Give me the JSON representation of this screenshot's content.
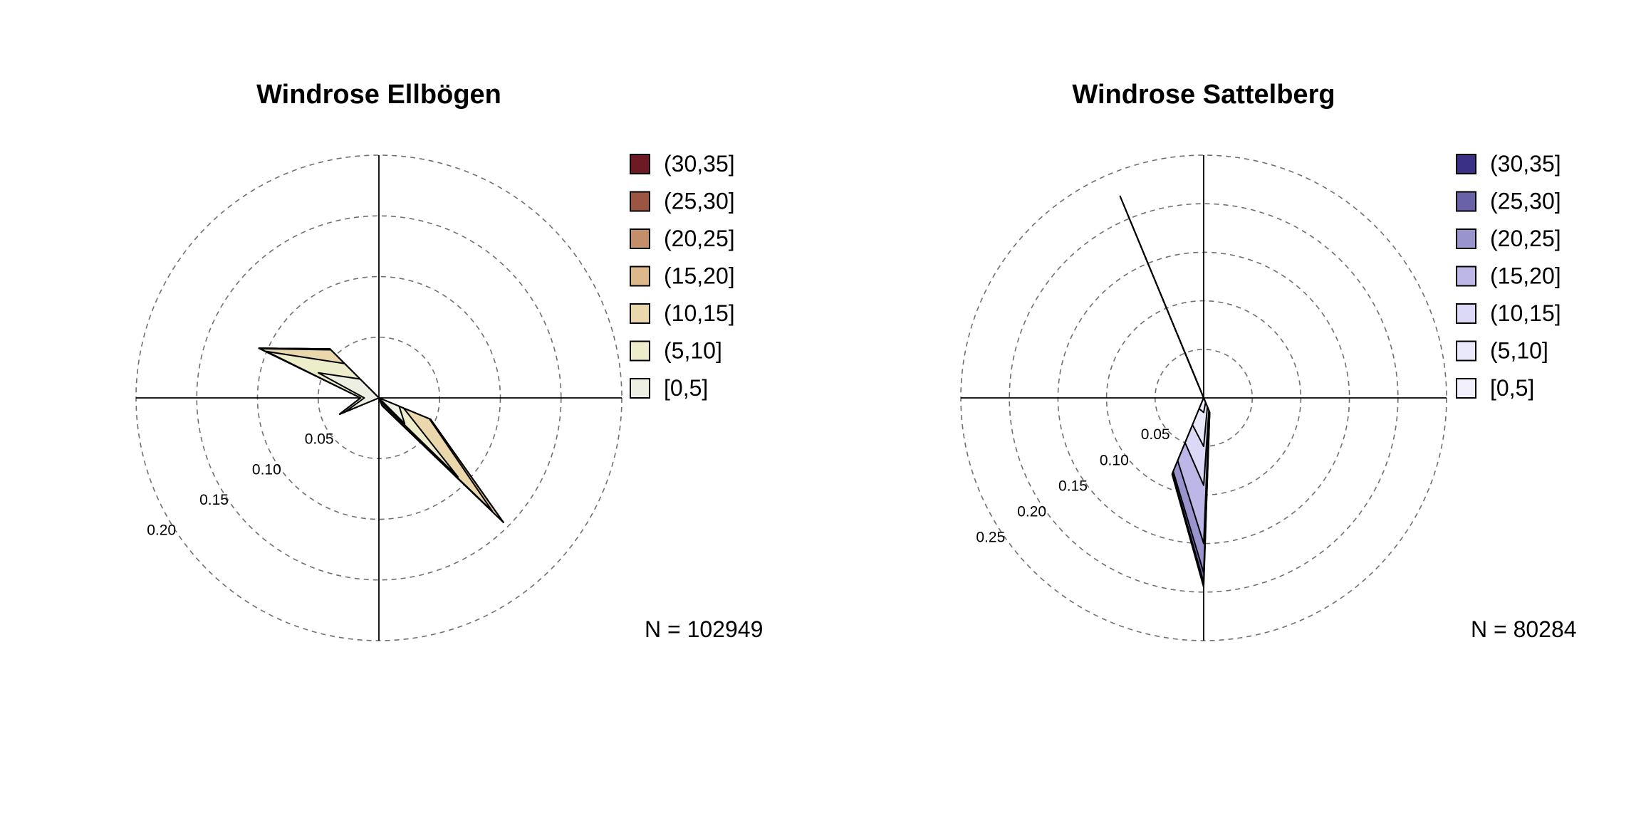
{
  "chart_data": [
    {
      "type": "windrose",
      "title": "Windrose Ellbögen",
      "n_label": "N = 102949",
      "ring_values": [
        0.05,
        0.1,
        0.15,
        0.2
      ],
      "ring_labels": [
        "0.05",
        "0.10",
        "0.15",
        "0.20"
      ],
      "legend": [
        "(30,35]",
        "(25,30]",
        "(20,25]",
        "(15,20]",
        "(10,15]",
        "(5,10]",
        "[0,5]"
      ],
      "legend_colors": [
        "#6e1a24",
        "#9c5443",
        "#c48e6b",
        "#dcb88b",
        "#ead8ac",
        "#eeedcb",
        "#ecefe2"
      ],
      "direction_bins_deg": [
        0,
        22.5,
        45,
        67.5,
        90,
        112.5,
        135,
        157.5,
        180,
        202.5,
        225,
        247.5,
        270,
        292.5,
        315,
        337.5
      ],
      "series": [
        {
          "name": "[0,5]",
          "values": [
            0.0,
            0.0,
            0.0,
            0.0,
            0.0,
            0.018,
            0.03,
            0.0,
            0.0,
            0.0,
            0.0,
            0.03,
            0.012,
            0.054,
            0.022,
            0.0
          ]
        },
        {
          "name": "(5,10]",
          "values": [
            0.0,
            0.0,
            0.0,
            0.0,
            0.0,
            0.022,
            0.092,
            0.003,
            0.0,
            0.0,
            0.0,
            0.035,
            0.015,
            0.1,
            0.04,
            0.0
          ]
        },
        {
          "name": "(10,15]",
          "values": [
            0.0,
            0.0,
            0.0,
            0.0,
            0.0,
            0.045,
            0.132,
            0.006,
            0.0,
            0.0,
            0.0,
            0.035,
            0.015,
            0.106,
            0.056,
            0.0
          ]
        },
        {
          "name": "(15,20]",
          "values": [
            0.0,
            0.0,
            0.0,
            0.0,
            0.0,
            0.046,
            0.145,
            0.007,
            0.0,
            0.0,
            0.0,
            0.035,
            0.015,
            0.107,
            0.057,
            0.0
          ]
        },
        {
          "name": "(20,25]",
          "values": [
            0.0,
            0.0,
            0.0,
            0.0,
            0.0,
            0.046,
            0.145,
            0.007,
            0.0,
            0.0,
            0.0,
            0.035,
            0.015,
            0.107,
            0.057,
            0.0
          ]
        },
        {
          "name": "(25,30]",
          "values": [
            0.0,
            0.0,
            0.0,
            0.0,
            0.0,
            0.046,
            0.145,
            0.007,
            0.0,
            0.0,
            0.0,
            0.035,
            0.015,
            0.107,
            0.057,
            0.0
          ]
        },
        {
          "name": "(30,35]",
          "values": [
            0.0,
            0.0,
            0.0,
            0.0,
            0.0,
            0.046,
            0.145,
            0.007,
            0.0,
            0.0,
            0.0,
            0.035,
            0.015,
            0.107,
            0.057,
            0.0
          ]
        }
      ],
      "rmax": 0.2
    },
    {
      "type": "windrose",
      "title": "Windrose Sattelberg",
      "n_label": "N = 80284",
      "ring_values": [
        0.05,
        0.1,
        0.15,
        0.2,
        0.25
      ],
      "ring_labels": [
        "0.05",
        "0.10",
        "0.15",
        "0.20",
        "0.25"
      ],
      "legend": [
        "(30,35]",
        "(25,30]",
        "(20,25]",
        "(15,20]",
        "(10,15]",
        "(5,10]",
        "[0,5]"
      ],
      "legend_colors": [
        "#3a3185",
        "#6a62a8",
        "#9a94ce",
        "#bdb7e8",
        "#dcd9f7",
        "#eae8fb",
        "#f1f0fc"
      ],
      "direction_bins_deg": [
        0,
        22.5,
        45,
        67.5,
        90,
        112.5,
        135,
        157.5,
        180,
        202.5,
        225,
        247.5,
        270,
        292.5,
        315,
        337.5
      ],
      "series": [
        {
          "name": "[0,5]",
          "values": [
            0.0,
            0.0,
            0.0,
            0.0,
            0.0,
            0.0,
            0.0,
            0.005,
            0.015,
            0.012,
            0.0,
            0.0,
            0.0,
            0.0,
            0.0,
            0.005
          ]
        },
        {
          "name": "(5,10]",
          "values": [
            0.0,
            0.0,
            0.0,
            0.0,
            0.0,
            0.0,
            0.0,
            0.01,
            0.05,
            0.03,
            0.0,
            0.0,
            0.0,
            0.0,
            0.0,
            0.06
          ]
        },
        {
          "name": "(10,15]",
          "values": [
            0.0,
            0.0,
            0.0,
            0.0,
            0.0,
            0.0,
            0.0,
            0.014,
            0.09,
            0.05,
            0.0,
            0.0,
            0.0,
            0.0,
            0.0,
            0.078
          ]
        },
        {
          "name": "(15,20]",
          "values": [
            0.0,
            0.0,
            0.0,
            0.0,
            0.0,
            0.0,
            0.0,
            0.015,
            0.15,
            0.07,
            0.0,
            0.0,
            0.0,
            0.0,
            0.0,
            0.2
          ]
        },
        {
          "name": "(20,25]",
          "values": [
            0.0,
            0.0,
            0.0,
            0.0,
            0.0,
            0.0,
            0.0,
            0.016,
            0.18,
            0.082,
            0.0,
            0.0,
            0.0,
            0.0,
            0.0,
            0.218
          ]
        },
        {
          "name": "(25,30]",
          "values": [
            0.0,
            0.0,
            0.0,
            0.0,
            0.0,
            0.0,
            0.0,
            0.016,
            0.19,
            0.084,
            0.0,
            0.0,
            0.0,
            0.0,
            0.0,
            0.223
          ]
        },
        {
          "name": "(30,35]",
          "values": [
            0.0,
            0.0,
            0.0,
            0.0,
            0.0,
            0.0,
            0.0,
            0.016,
            0.195,
            0.085,
            0.0,
            0.0,
            0.0,
            0.0,
            0.0,
            0.225
          ]
        }
      ],
      "rmax": 0.25
    }
  ]
}
